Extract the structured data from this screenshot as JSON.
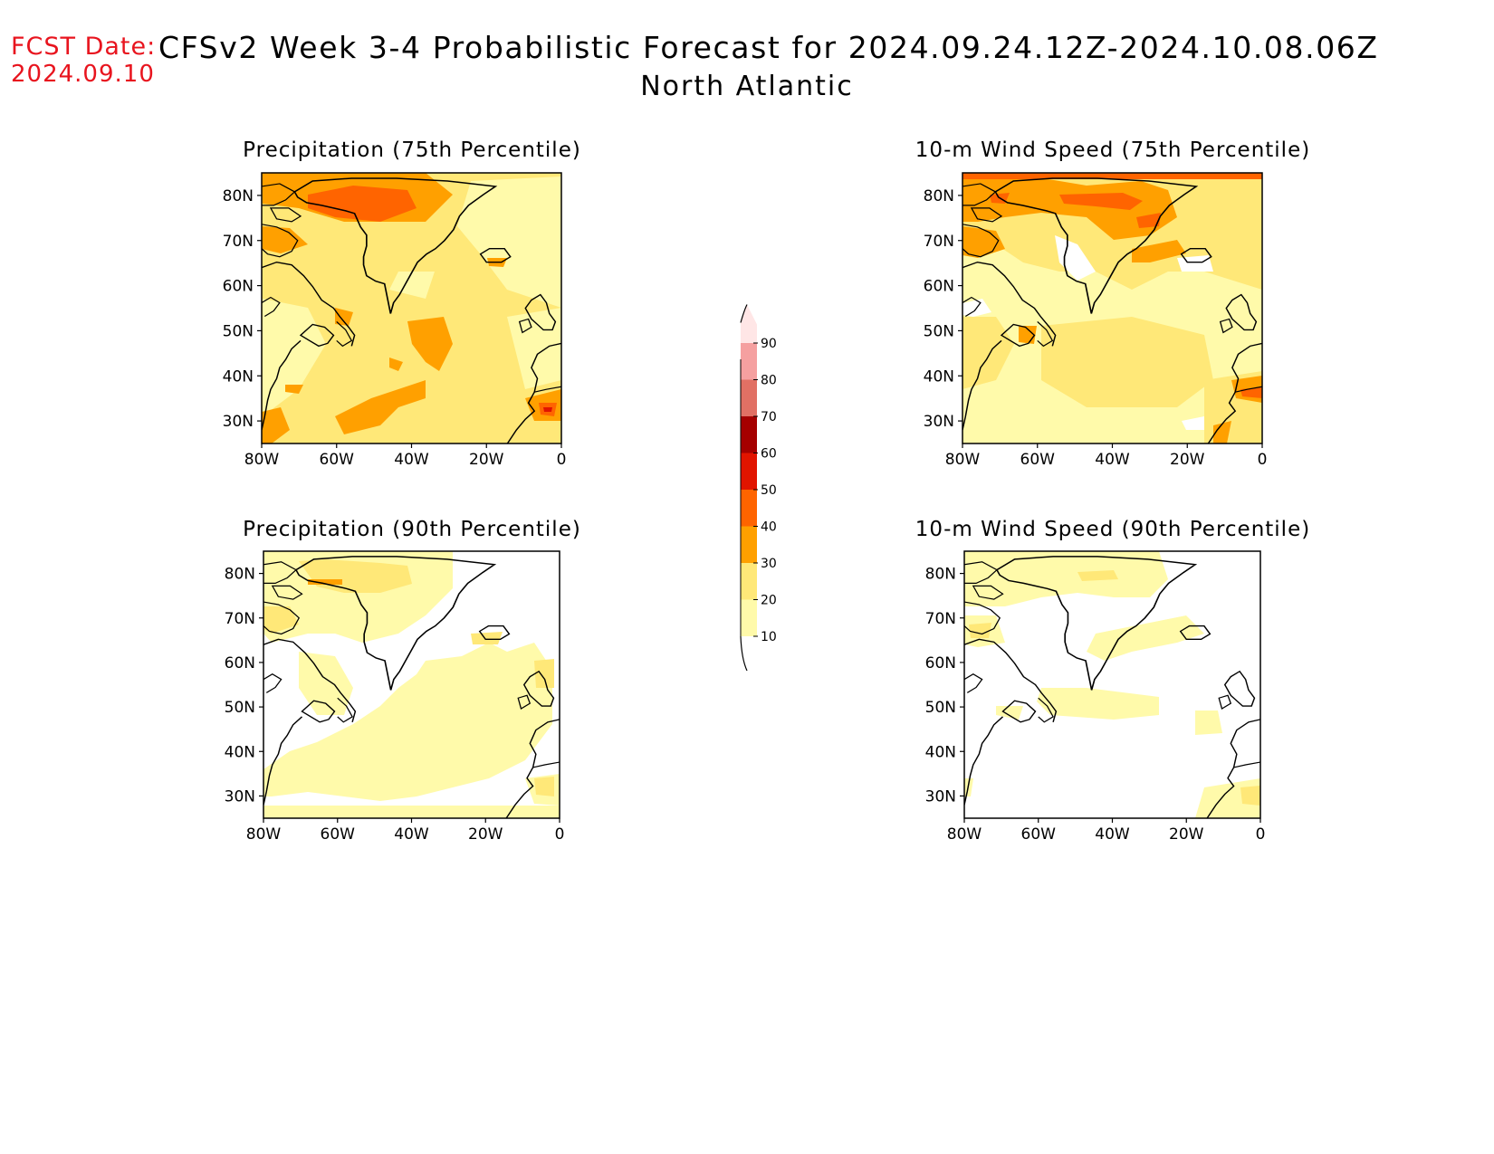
{
  "header": {
    "fcst_label": "FCST Date:",
    "fcst_date": "2024.09.10",
    "title": "CFSv2 Week 3-4 Probabilistic Forecast for 2024.09.24.12Z-2024.10.08.06Z",
    "subtitle": "North Atlantic"
  },
  "panels": [
    {
      "title": "Precipitation (75th Percentile)",
      "variable": "precipitation",
      "percentile": "75th"
    },
    {
      "title": "10-m Wind Speed (75th Percentile)",
      "variable": "wind_speed_10m",
      "percentile": "75th"
    },
    {
      "title": "Precipitation (90th Percentile)",
      "variable": "precipitation",
      "percentile": "90th"
    },
    {
      "title": "10-m Wind Speed (90th Percentile)",
      "variable": "wind_speed_10m",
      "percentile": "90th"
    }
  ],
  "axes": {
    "lat_labels": [
      "80N",
      "70N",
      "60N",
      "50N",
      "40N",
      "30N"
    ],
    "lon_labels": [
      "80W",
      "60W",
      "40W",
      "20W",
      "0"
    ],
    "lat_range": [
      25,
      85
    ],
    "lon_range": [
      -80,
      0
    ]
  },
  "colorbar": {
    "labels": [
      "10",
      "20",
      "30",
      "40",
      "50",
      "60",
      "70",
      "80",
      "90"
    ],
    "colors": [
      "#fffaaa",
      "#ffe878",
      "#ffa000",
      "#ff6400",
      "#e11400",
      "#a50000",
      "#e17064",
      "#f5a0a0",
      "#ffe6e6"
    ]
  },
  "colors": {
    "date_text": "#e8141e"
  }
}
